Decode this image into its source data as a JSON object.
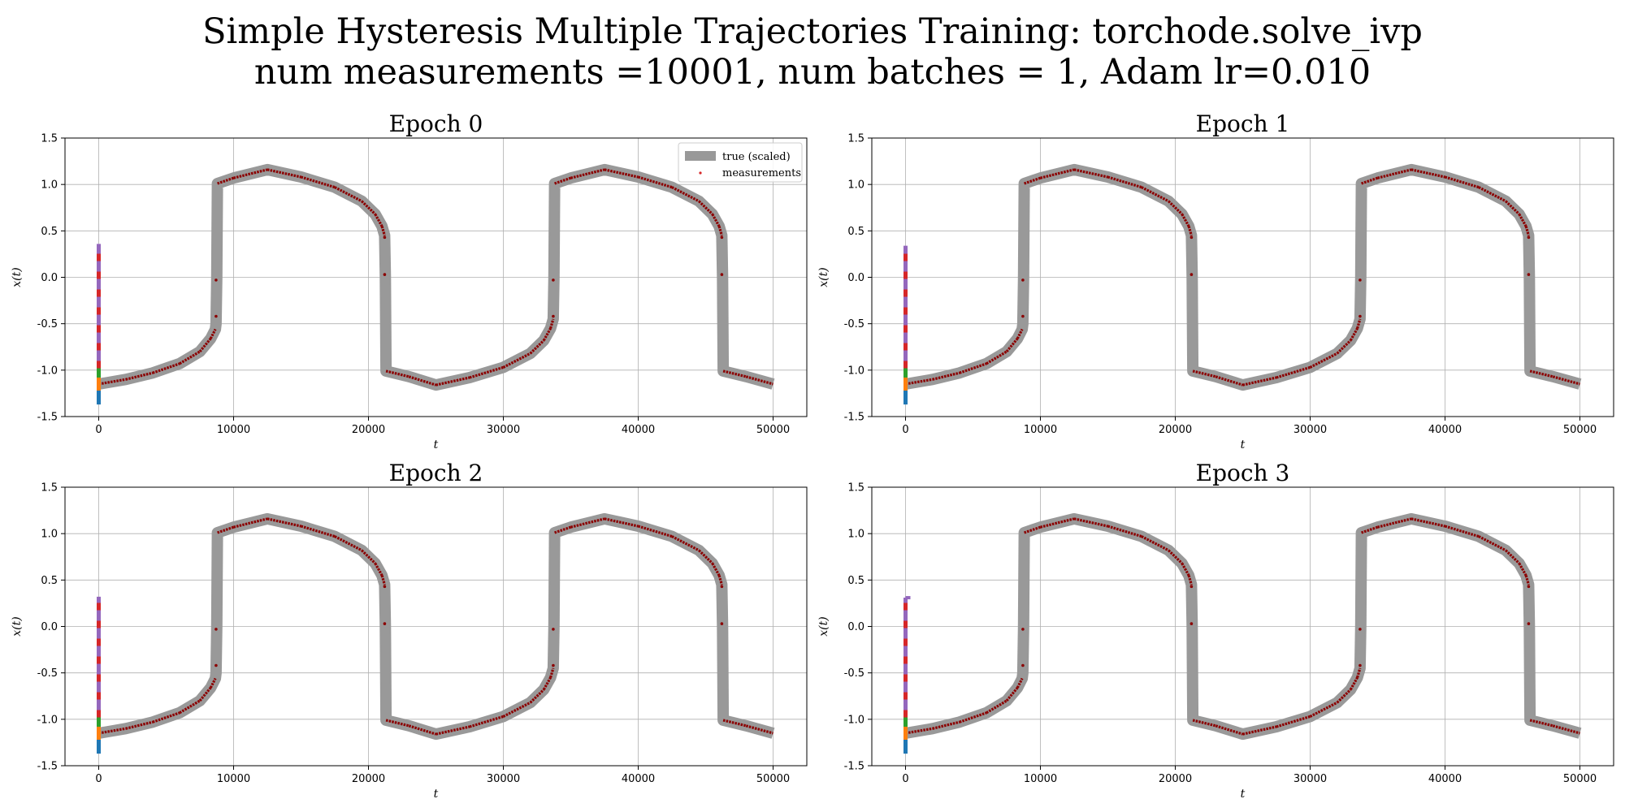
{
  "figure": {
    "title_line_1": "Simple Hysteresis Multiple Trajectories Training: torchode.solve_ivp",
    "title_line_2": "num measurements =10001, num batches = 1, Adam lr=0.010"
  },
  "colors": {
    "true_curve": "#999999",
    "measurements": "#d62728",
    "measurement_dark": "#8b0000",
    "grid": "#b0b0b0",
    "trajectories": [
      "#1f77b4",
      "#ff7f0e",
      "#2ca02c",
      "#d62728",
      "#9467bd"
    ]
  },
  "chart_data": [
    {
      "type": "line",
      "title": "Epoch 0",
      "xlabel": "t",
      "ylabel": "x(t)",
      "xlim": [
        -2500,
        52500
      ],
      "ylim": [
        -1.5,
        1.5
      ],
      "xticks": [
        0,
        10000,
        20000,
        30000,
        40000,
        50000
      ],
      "yticks": [
        -1.5,
        -1.0,
        -0.5,
        0.0,
        0.5,
        1.0,
        1.5
      ],
      "grid": true,
      "legend": {
        "position": "top-right",
        "entries": [
          "true (scaled)",
          "measurements"
        ]
      },
      "trajectory_top": 0.36
    },
    {
      "type": "line",
      "title": "Epoch 1",
      "xlabel": "t",
      "ylabel": "x(t)",
      "xlim": [
        -2500,
        52500
      ],
      "ylim": [
        -1.5,
        1.5
      ],
      "xticks": [
        0,
        10000,
        20000,
        30000,
        40000,
        50000
      ],
      "yticks": [
        -1.5,
        -1.0,
        -0.5,
        0.0,
        0.5,
        1.0,
        1.5
      ],
      "grid": true,
      "trajectory_top": 0.34
    },
    {
      "type": "line",
      "title": "Epoch 2",
      "xlabel": "t",
      "ylabel": "x(t)",
      "xlim": [
        -2500,
        52500
      ],
      "ylim": [
        -1.5,
        1.5
      ],
      "xticks": [
        0,
        10000,
        20000,
        30000,
        40000,
        50000
      ],
      "yticks": [
        -1.5,
        -1.0,
        -0.5,
        0.0,
        0.5,
        1.0,
        1.5
      ],
      "grid": true,
      "trajectory_top": 0.32
    },
    {
      "type": "line",
      "title": "Epoch 3",
      "xlabel": "t",
      "ylabel": "x(t)",
      "xlim": [
        -2500,
        52500
      ],
      "ylim": [
        -1.5,
        1.5
      ],
      "xticks": [
        0,
        10000,
        20000,
        30000,
        40000,
        50000
      ],
      "yticks": [
        -1.5,
        -1.0,
        -0.5,
        0.0,
        0.5,
        1.0,
        1.5
      ],
      "grid": true,
      "trajectory_top": 0.31
    }
  ],
  "true_curve": {
    "name": "true (scaled)",
    "points": [
      [
        0,
        -1.15
      ],
      [
        2000,
        -1.1
      ],
      [
        4000,
        -1.03
      ],
      [
        6000,
        -0.93
      ],
      [
        7500,
        -0.8
      ],
      [
        8300,
        -0.66
      ],
      [
        8650,
        -0.56
      ],
      [
        8700,
        -0.5
      ],
      [
        8750,
        0.0
      ],
      [
        8800,
        1.01
      ],
      [
        10000,
        1.07
      ],
      [
        12500,
        1.16
      ],
      [
        15000,
        1.08
      ],
      [
        17500,
        0.97
      ],
      [
        19500,
        0.82
      ],
      [
        20500,
        0.68
      ],
      [
        21000,
        0.55
      ],
      [
        21200,
        0.45
      ],
      [
        21250,
        0.0
      ],
      [
        21300,
        -1.01
      ],
      [
        23000,
        -1.07
      ],
      [
        25000,
        -1.16
      ],
      [
        27500,
        -1.08
      ],
      [
        30000,
        -0.97
      ],
      [
        32000,
        -0.82
      ],
      [
        33000,
        -0.68
      ],
      [
        33500,
        -0.55
      ],
      [
        33700,
        -0.45
      ],
      [
        33750,
        0.0
      ],
      [
        33800,
        1.01
      ],
      [
        35000,
        1.07
      ],
      [
        37500,
        1.16
      ],
      [
        40000,
        1.08
      ],
      [
        42500,
        0.97
      ],
      [
        44500,
        0.82
      ],
      [
        45500,
        0.68
      ],
      [
        46000,
        0.55
      ],
      [
        46200,
        0.45
      ],
      [
        46250,
        0.0
      ],
      [
        46300,
        -1.01
      ],
      [
        48000,
        -1.07
      ],
      [
        50000,
        -1.15
      ]
    ]
  },
  "measurements": {
    "name": "measurements",
    "outliers": [
      [
        8700,
        -0.03
      ],
      [
        8700,
        -0.42
      ],
      [
        21200,
        0.03
      ],
      [
        21200,
        0.43
      ],
      [
        33700,
        -0.03
      ],
      [
        33700,
        -0.42
      ],
      [
        46200,
        0.03
      ],
      [
        46200,
        0.43
      ]
    ]
  }
}
